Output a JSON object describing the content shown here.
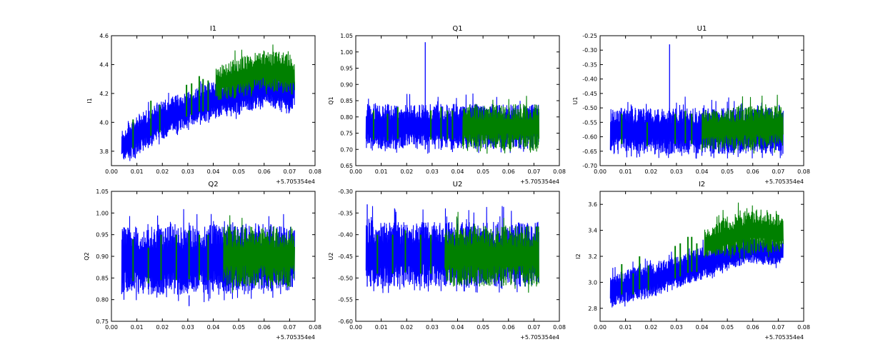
{
  "chart_data": [
    {
      "type": "line",
      "title": "I1",
      "ylabel": "I1",
      "xlim": [
        0,
        0.08
      ],
      "ylim": [
        3.7,
        4.6
      ],
      "xticks": [
        "0.00",
        "0.01",
        "0.02",
        "0.03",
        "0.04",
        "0.05",
        "0.06",
        "0.07",
        "0.08"
      ],
      "yticks": [
        3.8,
        4.0,
        4.2,
        4.4,
        4.6
      ],
      "ytick_labels": [
        "3.8",
        "4.0",
        "4.2",
        "4.4",
        "4.6"
      ],
      "offset_text": "+5.705354e4",
      "series": [
        {
          "name": "blue",
          "color": "#0000ff",
          "x": [
            0.004,
            0.01,
            0.02,
            0.03,
            0.04,
            0.05,
            0.06,
            0.07,
            0.072
          ],
          "low": [
            3.73,
            3.76,
            3.88,
            3.97,
            4.02,
            4.05,
            4.12,
            4.06,
            4.12
          ],
          "high": [
            3.95,
            4.05,
            4.15,
            4.22,
            4.28,
            4.33,
            4.38,
            4.32,
            4.35
          ]
        },
        {
          "name": "green",
          "color": "#008000",
          "x": [
            0.041,
            0.05,
            0.06,
            0.07,
            0.072
          ],
          "low": [
            4.15,
            4.17,
            4.22,
            4.18,
            4.2
          ],
          "high": [
            4.38,
            4.45,
            4.5,
            4.48,
            4.45
          ],
          "spikes_x": [
            0.0085,
            0.0155,
            0.019,
            0.0295,
            0.0315,
            0.0345,
            0.036,
            0.038
          ],
          "spike_peak": [
            4.02,
            4.15,
            4.12,
            4.26,
            4.27,
            4.32,
            4.3,
            4.29
          ]
        }
      ]
    },
    {
      "type": "line",
      "title": "Q1",
      "ylabel": "Q1",
      "xlim": [
        0,
        0.08
      ],
      "ylim": [
        0.65,
        1.05
      ],
      "xticks": [
        "0.00",
        "0.01",
        "0.02",
        "0.03",
        "0.04",
        "0.05",
        "0.06",
        "0.07",
        "0.08"
      ],
      "yticks": [
        0.65,
        0.7,
        0.75,
        0.8,
        0.85,
        0.9,
        0.95,
        1.0,
        1.05
      ],
      "ytick_labels": [
        "0.65",
        "0.70",
        "0.75",
        "0.80",
        "0.85",
        "0.90",
        "0.95",
        "1.00",
        "1.05"
      ],
      "offset_text": "+5.705354e4",
      "series": [
        {
          "name": "blue",
          "color": "#0000ff",
          "x": [
            0.004,
            0.072
          ],
          "low": [
            0.7,
            0.7
          ],
          "high": [
            0.84,
            0.84
          ],
          "outlier": {
            "x": 0.0273,
            "y": 1.03
          }
        },
        {
          "name": "green",
          "color": "#008000",
          "x": [
            0.042,
            0.072
          ],
          "low": [
            0.7,
            0.7
          ],
          "high": [
            0.84,
            0.84
          ],
          "spikes_x": [
            0.007,
            0.0125,
            0.0165,
            0.0295,
            0.0335,
            0.036,
            0.038
          ],
          "spike_peak": [
            0.82,
            0.81,
            0.83,
            0.82,
            0.83,
            0.82,
            0.82
          ]
        }
      ]
    },
    {
      "type": "line",
      "title": "U1",
      "ylabel": "U1",
      "xlim": [
        0,
        0.08
      ],
      "ylim": [
        -0.7,
        -0.25
      ],
      "xticks": [
        "0.00",
        "0.01",
        "0.02",
        "0.03",
        "0.04",
        "0.05",
        "0.06",
        "0.07",
        "0.08"
      ],
      "yticks": [
        -0.7,
        -0.65,
        -0.6,
        -0.55,
        -0.5,
        -0.45,
        -0.4,
        -0.35,
        -0.3,
        -0.25
      ],
      "ytick_labels": [
        "-0.70",
        "-0.65",
        "-0.60",
        "-0.55",
        "-0.50",
        "-0.45",
        "-0.40",
        "-0.35",
        "-0.30",
        "-0.25"
      ],
      "offset_text": "+5.705354e4",
      "series": [
        {
          "name": "blue",
          "color": "#0000ff",
          "x": [
            0.004,
            0.072
          ],
          "low": [
            -0.66,
            -0.66
          ],
          "high": [
            -0.5,
            -0.5
          ],
          "outlier": {
            "x": 0.0273,
            "y": -0.28
          }
        },
        {
          "name": "green",
          "color": "#008000",
          "x": [
            0.04,
            0.072
          ],
          "low": [
            -0.65,
            -0.64
          ],
          "high": [
            -0.5,
            -0.49
          ],
          "spikes_x": [
            0.0085,
            0.0185,
            0.0295,
            0.0335,
            0.036
          ],
          "spike_peak": [
            -0.52,
            -0.55,
            -0.52,
            -0.51,
            -0.52
          ]
        }
      ]
    },
    {
      "type": "line",
      "title": "Q2",
      "ylabel": "Q2",
      "xlim": [
        0,
        0.08
      ],
      "ylim": [
        0.75,
        1.05
      ],
      "xticks": [
        "0.00",
        "0.01",
        "0.02",
        "0.03",
        "0.04",
        "0.05",
        "0.06",
        "0.07",
        "0.08"
      ],
      "yticks": [
        0.75,
        0.8,
        0.85,
        0.9,
        0.95,
        1.0,
        1.05
      ],
      "ytick_labels": [
        "0.75",
        "0.80",
        "0.85",
        "0.90",
        "0.95",
        "1.00",
        "1.05"
      ],
      "offset_text": "+5.705354e4",
      "series": [
        {
          "name": "blue",
          "color": "#0000ff",
          "x": [
            0.004,
            0.03,
            0.05,
            0.072
          ],
          "low": [
            0.81,
            0.81,
            0.81,
            0.82
          ],
          "high": [
            0.97,
            0.97,
            0.98,
            0.97
          ],
          "outlier": {
            "x": 0.0305,
            "y": 0.785
          }
        },
        {
          "name": "green",
          "color": "#008000",
          "x": [
            0.044,
            0.072
          ],
          "low": [
            0.83,
            0.83
          ],
          "high": [
            0.97,
            0.97
          ],
          "spikes_x": [
            0.0085,
            0.0145,
            0.0195,
            0.0255,
            0.0305,
            0.0345,
            0.038
          ],
          "spike_peak": [
            0.94,
            0.92,
            0.95,
            0.95,
            0.96,
            0.95,
            0.95
          ]
        }
      ]
    },
    {
      "type": "line",
      "title": "U2",
      "ylabel": "U2",
      "xlim": [
        0,
        0.08
      ],
      "ylim": [
        -0.6,
        -0.3
      ],
      "xticks": [
        "0.00",
        "0.01",
        "0.02",
        "0.03",
        "0.04",
        "0.05",
        "0.06",
        "0.07",
        "0.08"
      ],
      "yticks": [
        -0.6,
        -0.55,
        -0.5,
        -0.45,
        -0.4,
        -0.35,
        -0.3
      ],
      "ytick_labels": [
        "-0.60",
        "-0.55",
        "-0.50",
        "-0.45",
        "-0.40",
        "-0.35",
        "-0.30"
      ],
      "offset_text": "+5.705354e4",
      "series": [
        {
          "name": "blue",
          "color": "#0000ff",
          "x": [
            0.004,
            0.072
          ],
          "low": [
            -0.52,
            -0.52
          ],
          "high": [
            -0.37,
            -0.37
          ],
          "outlier": {
            "x": 0.0045,
            "y": -0.33
          }
        },
        {
          "name": "green",
          "color": "#008000",
          "x": [
            0.035,
            0.072
          ],
          "low": [
            -0.52,
            -0.52
          ],
          "high": [
            -0.38,
            -0.38
          ],
          "spikes_x": [
            0.0085,
            0.0145,
            0.0195,
            0.0255,
            0.0295
          ],
          "spike_peak": [
            -0.4,
            -0.4,
            -0.39,
            -0.4,
            -0.4
          ]
        }
      ]
    },
    {
      "type": "line",
      "title": "I2",
      "ylabel": "I2",
      "xlim": [
        0,
        0.08
      ],
      "ylim": [
        2.7,
        3.7
      ],
      "xticks": [
        "0.00",
        "0.01",
        "0.02",
        "0.03",
        "0.04",
        "0.05",
        "0.06",
        "0.07",
        "0.08"
      ],
      "yticks": [
        2.8,
        3.0,
        3.2,
        3.4,
        3.6
      ],
      "ytick_labels": [
        "2.8",
        "3.0",
        "3.2",
        "3.4",
        "3.6"
      ],
      "offset_text": "+5.705354e4",
      "series": [
        {
          "name": "blue",
          "color": "#0000ff",
          "x": [
            0.004,
            0.01,
            0.02,
            0.03,
            0.04,
            0.05,
            0.06,
            0.07,
            0.072
          ],
          "low": [
            2.79,
            2.84,
            2.88,
            2.95,
            3.02,
            3.1,
            3.15,
            3.12,
            3.18
          ],
          "high": [
            3.05,
            3.1,
            3.15,
            3.2,
            3.27,
            3.3,
            3.35,
            3.32,
            3.3
          ]
        },
        {
          "name": "green",
          "color": "#008000",
          "x": [
            0.041,
            0.05,
            0.06,
            0.07,
            0.072
          ],
          "low": [
            3.18,
            3.2,
            3.22,
            3.22,
            3.25
          ],
          "high": [
            3.42,
            3.5,
            3.58,
            3.55,
            3.5
          ],
          "spikes_x": [
            0.0085,
            0.013,
            0.0155,
            0.019,
            0.0295,
            0.0315,
            0.0345,
            0.036,
            0.038
          ],
          "spike_peak": [
            3.14,
            3.07,
            3.2,
            3.13,
            3.28,
            3.3,
            3.35,
            3.35,
            3.3
          ]
        }
      ]
    }
  ]
}
